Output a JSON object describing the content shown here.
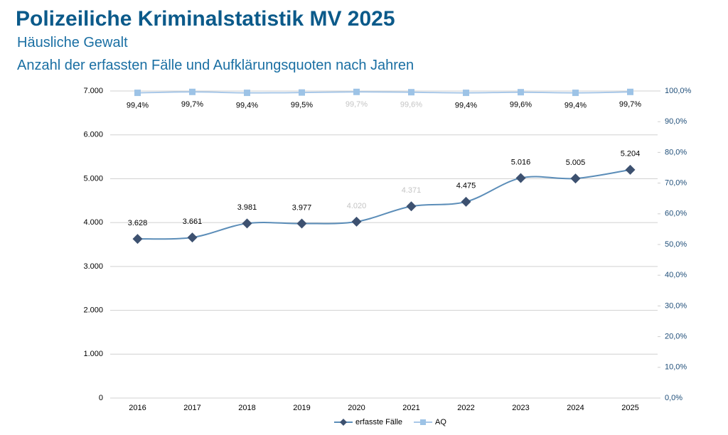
{
  "chart_data": {
    "type": "line",
    "title": "Polizeiliche Kriminalstatistik MV 2025",
    "subtitle": [
      "Häusliche Gewalt",
      "Anzahl der erfassten Fälle und Aufklärungsquoten nach Jahren"
    ],
    "categories": [
      "2016",
      "2017",
      "2018",
      "2019",
      "2020",
      "2021",
      "2022",
      "2023",
      "2024",
      "2025"
    ],
    "series": [
      {
        "name": "erfasste Fälle",
        "color": "#5b8db8",
        "marker_color": "#3d5170",
        "values": [
          3628,
          3661,
          3981,
          3977,
          4020,
          4371,
          4475,
          5016,
          5005,
          5204
        ],
        "value_labels": [
          "3.628",
          "3.661",
          "3.981",
          "3.977",
          "4.020",
          "4.371",
          "4.475",
          "5.016",
          "5.005",
          "5.204"
        ]
      },
      {
        "name": "AQ",
        "color": "#a9c8e8",
        "marker_color": "#9dc3e6",
        "axis": "y2",
        "values": [
          99.4,
          99.7,
          99.4,
          99.5,
          99.7,
          99.6,
          99.4,
          99.6,
          99.4,
          99.7
        ],
        "value_labels": [
          "99,4%",
          "99,7%",
          "99,4%",
          "99,5%",
          "99,7%",
          "99,6%",
          "99,4%",
          "99,6%",
          "99,4%",
          "99,7%"
        ]
      }
    ],
    "ylim": [
      0,
      7000
    ],
    "yticks": [
      0,
      {
        "value": 1000,
        "label": "1.000"
      },
      {
        "value": 2000,
        "label": "2.000"
      },
      {
        "value": 3000,
        "label": "3.000"
      },
      {
        "value": 4000,
        "label": "4.000"
      },
      {
        "value": 5000,
        "label": "5.000"
      },
      {
        "value": 6000,
        "label": "6.000"
      },
      {
        "value": 7000,
        "label": "7.000"
      }
    ],
    "y2lim": [
      0,
      100
    ],
    "y2ticks": [
      {
        "value": 0,
        "label": "0,0%"
      },
      {
        "value": 10,
        "label": "10,0%"
      },
      {
        "value": 20,
        "label": "20,0%"
      },
      {
        "value": 30,
        "label": "30,0%"
      },
      {
        "value": 40,
        "label": "40,0%"
      },
      {
        "value": 50,
        "label": "50,0%"
      },
      {
        "value": 60,
        "label": "60,0%"
      },
      {
        "value": 70,
        "label": "70,0%"
      },
      {
        "value": 80,
        "label": "80,0%"
      },
      {
        "value": 90,
        "label": "90,0%"
      },
      {
        "value": 100,
        "label": "100,0%"
      }
    ],
    "grid": true,
    "legend": "bottom"
  }
}
